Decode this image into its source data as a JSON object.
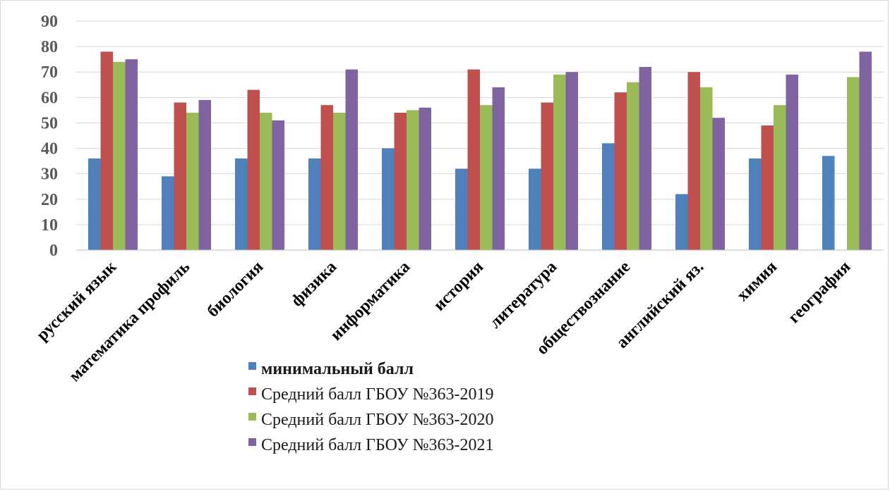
{
  "chart_data": {
    "type": "bar",
    "categories": [
      "русский язык",
      "математика профиль",
      "биология",
      "физика",
      "информатика",
      "история",
      "литература",
      "обществознание",
      "английский яз.",
      "химия",
      "география"
    ],
    "series": [
      {
        "name": "минимальный балл",
        "color": "#4f81bd",
        "values": [
          36,
          29,
          36,
          36,
          40,
          32,
          32,
          42,
          22,
          36,
          37
        ]
      },
      {
        "name": "Средний балл ГБОУ №363-2019",
        "color": "#c0504d",
        "values": [
          78,
          58,
          63,
          57,
          54,
          71,
          58,
          62,
          70,
          49,
          null
        ]
      },
      {
        "name": "Средний балл ГБОУ №363-2020",
        "color": "#9bbb59",
        "values": [
          74,
          54,
          54,
          54,
          55,
          57,
          69,
          66,
          64,
          57,
          68
        ]
      },
      {
        "name": "Средний балл ГБОУ №363-2021",
        "color": "#8064a2",
        "values": [
          75,
          59,
          51,
          71,
          56,
          64,
          70,
          72,
          52,
          69,
          78
        ]
      }
    ],
    "yticks": [
      "0",
      "10",
      "20",
      "30",
      "40",
      "50",
      "60",
      "70",
      "80",
      "90"
    ],
    "ylim": [
      0,
      90
    ],
    "grid": true,
    "legend": "bottom-center"
  }
}
